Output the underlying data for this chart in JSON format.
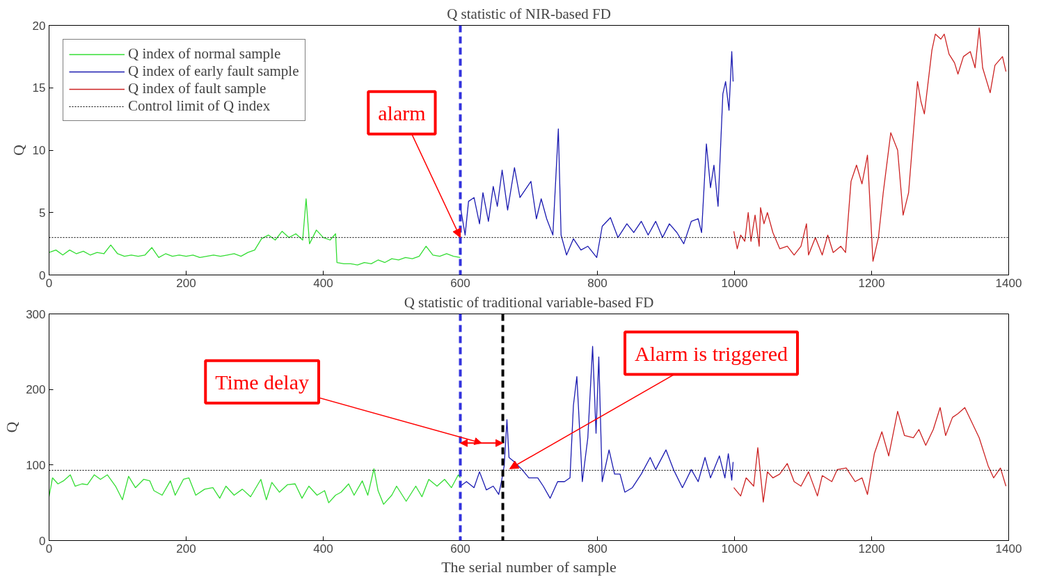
{
  "chart_data": [
    {
      "type": "line",
      "title": "Q statistic of NIR-based FD",
      "ylabel": "Q",
      "xlim": [
        0,
        1400
      ],
      "ylim": [
        0,
        20
      ],
      "xticks": [
        0,
        200,
        400,
        600,
        800,
        1000,
        1200,
        1400
      ],
      "yticks": [
        0,
        5,
        10,
        15,
        20
      ],
      "grid": false,
      "legend": "top left",
      "line_style": "solid",
      "marker": "none",
      "series": [
        {
          "name": "Q index of normal sample",
          "color": "#33dd33",
          "x": [
            0,
            10,
            20,
            30,
            40,
            50,
            60,
            70,
            80,
            90,
            100,
            110,
            120,
            130,
            140,
            150,
            160,
            170,
            180,
            190,
            200,
            210,
            220,
            230,
            240,
            250,
            260,
            270,
            280,
            290,
            300,
            310,
            320,
            330,
            340,
            350,
            360,
            370,
            375,
            380,
            390,
            400,
            410,
            418,
            420,
            430,
            440,
            450,
            460,
            470,
            480,
            490,
            500,
            510,
            520,
            530,
            540,
            550,
            560,
            570,
            580,
            590,
            600
          ],
          "values": [
            1.8,
            2.0,
            1.6,
            2.0,
            1.7,
            1.9,
            1.6,
            1.8,
            1.7,
            2.4,
            1.7,
            1.5,
            1.6,
            1.5,
            1.6,
            2.2,
            1.4,
            1.7,
            1.5,
            1.6,
            1.5,
            1.6,
            1.4,
            1.5,
            1.6,
            1.5,
            1.6,
            1.7,
            1.5,
            1.8,
            2.0,
            2.9,
            3.2,
            2.8,
            3.5,
            3.0,
            3.3,
            2.8,
            6.1,
            2.5,
            3.6,
            3.0,
            2.8,
            3.3,
            1.0,
            0.9,
            0.9,
            0.8,
            1.0,
            0.9,
            1.2,
            1.0,
            1.3,
            1.2,
            1.4,
            1.3,
            1.5,
            2.3,
            1.6,
            1.5,
            1.7,
            1.5,
            1.4
          ]
        },
        {
          "name": "Q index of early fault sample",
          "color": "#1a1ab0",
          "x": [
            600,
            607,
            612,
            620,
            628,
            633,
            641,
            648,
            654,
            661,
            669,
            679,
            687,
            703,
            711,
            718,
            726,
            735,
            743,
            747,
            755,
            765,
            776,
            786,
            799,
            807,
            819,
            830,
            843,
            853,
            864,
            874,
            885,
            895,
            905,
            916,
            926,
            937,
            947,
            952,
            959,
            965,
            970,
            976,
            983,
            987,
            992,
            996,
            998
          ],
          "values": [
            5.5,
            3.2,
            5.9,
            6.2,
            4.1,
            6.6,
            4.3,
            7.1,
            5.5,
            8.4,
            5.2,
            8.6,
            6.2,
            7.5,
            4.5,
            6.1,
            4.5,
            3.2,
            11.7,
            3.2,
            1.6,
            2.9,
            2.0,
            2.3,
            1.4,
            3.9,
            4.6,
            3.0,
            4.1,
            3.4,
            4.3,
            3.2,
            4.3,
            3.0,
            4.1,
            3.4,
            2.5,
            4.3,
            4.5,
            3.4,
            10.5,
            7.0,
            8.8,
            5.5,
            14.5,
            15.5,
            13.2,
            17.9,
            15.5
          ]
        },
        {
          "name": "Q index of fault sample",
          "color": "#cc2222",
          "x": [
            999,
            1004,
            1009,
            1015,
            1020,
            1024,
            1030,
            1036,
            1038,
            1043,
            1048,
            1056,
            1066,
            1077,
            1087,
            1097,
            1105,
            1108,
            1118,
            1128,
            1136,
            1144,
            1155,
            1162,
            1170,
            1178,
            1186,
            1194,
            1202,
            1210,
            1217,
            1228,
            1238,
            1246,
            1254,
            1267,
            1272,
            1277,
            1288,
            1293,
            1301,
            1306,
            1313,
            1321,
            1326,
            1334,
            1344,
            1351,
            1357,
            1362,
            1373,
            1380,
            1391,
            1396
          ],
          "values": [
            3.5,
            2.1,
            3.2,
            2.7,
            5.0,
            2.7,
            4.8,
            2.3,
            5.4,
            4.1,
            5.0,
            3.4,
            2.1,
            2.3,
            1.6,
            2.3,
            4.1,
            1.6,
            3.0,
            1.6,
            3.2,
            1.8,
            2.3,
            1.8,
            7.5,
            8.8,
            7.3,
            9.6,
            1.1,
            3.0,
            6.6,
            11.4,
            10.0,
            4.8,
            6.6,
            15.5,
            13.9,
            12.9,
            18.0,
            19.3,
            18.9,
            19.3,
            17.7,
            17.0,
            16.1,
            17.5,
            17.9,
            16.6,
            19.8,
            16.6,
            14.6,
            16.8,
            17.5,
            16.3
          ]
        }
      ],
      "ref_lines": [
        {
          "axis": "y",
          "value": 3,
          "label": "Control limit of Q index",
          "color": "#000000",
          "line_style": "dotted"
        },
        {
          "axis": "x",
          "value": 600,
          "color": "#3333dd",
          "line_style": "dashed"
        }
      ],
      "annotations": [
        {
          "text": "alarm",
          "x": 600,
          "y": 3
        }
      ]
    },
    {
      "type": "line",
      "title": "Q statistic of traditional variable-based FD",
      "xlabel": "The serial number of sample",
      "ylabel": "Q",
      "xlim": [
        0,
        1400
      ],
      "ylim": [
        0,
        300
      ],
      "xticks": [
        0,
        200,
        400,
        600,
        800,
        1000,
        1200,
        1400
      ],
      "yticks": [
        0,
        100,
        200,
        300
      ],
      "grid": false,
      "legend": false,
      "line_style": "solid",
      "marker": "none",
      "series": [
        {
          "color": "#33dd33",
          "x": [
            0,
            5,
            13,
            21,
            31,
            38,
            48,
            56,
            66,
            75,
            85,
            97,
            107,
            116,
            126,
            138,
            147,
            153,
            165,
            177,
            184,
            196,
            204,
            214,
            227,
            239,
            249,
            258,
            270,
            282,
            294,
            309,
            317,
            325,
            336,
            348,
            359,
            369,
            379,
            391,
            402,
            408,
            418,
            426,
            437,
            445,
            457,
            465,
            474,
            480,
            488,
            500,
            507,
            521,
            535,
            544,
            554,
            566,
            577,
            587,
            597,
            600
          ],
          "values": [
            58,
            83,
            75,
            79,
            87,
            72,
            75,
            74,
            87,
            81,
            87,
            72,
            54,
            85,
            70,
            81,
            79,
            66,
            60,
            79,
            60,
            81,
            83,
            60,
            68,
            70,
            56,
            72,
            60,
            68,
            58,
            81,
            54,
            77,
            64,
            74,
            75,
            56,
            72,
            60,
            66,
            50,
            60,
            64,
            75,
            60,
            79,
            60,
            95,
            66,
            48,
            60,
            72,
            52,
            72,
            58,
            81,
            72,
            81,
            70,
            87,
            83
          ]
        },
        {
          "color": "#1a1ab0",
          "x": [
            600,
            609,
            620,
            628,
            638,
            648,
            656,
            660,
            664,
            668,
            671,
            679,
            690,
            700,
            713,
            721,
            731,
            742,
            752,
            760,
            765,
            770,
            778,
            786,
            793,
            798,
            802,
            807,
            817,
            825,
            833,
            840,
            851,
            864,
            877,
            885,
            900,
            911,
            924,
            937,
            947,
            957,
            965,
            978,
            986,
            991,
            996,
            998
          ],
          "values": [
            72,
            78,
            70,
            91,
            67,
            72,
            61,
            78,
            99,
            160,
            110,
            104,
            94,
            83,
            83,
            72,
            56,
            78,
            78,
            83,
            179,
            217,
            78,
            136,
            257,
            142,
            243,
            78,
            120,
            88,
            88,
            64,
            70,
            88,
            110,
            94,
            120,
            94,
            70,
            94,
            78,
            110,
            83,
            112,
            83,
            115,
            80,
            104
          ]
        },
        {
          "color": "#cc2222",
          "x": [
            999,
            1009,
            1017,
            1028,
            1034,
            1042,
            1048,
            1056,
            1066,
            1077,
            1087,
            1097,
            1108,
            1121,
            1128,
            1142,
            1150,
            1163,
            1176,
            1186,
            1194,
            1204,
            1215,
            1225,
            1238,
            1248,
            1261,
            1269,
            1279,
            1290,
            1300,
            1308,
            1318,
            1326,
            1336,
            1347,
            1357,
            1370,
            1378,
            1388,
            1396
          ],
          "values": [
            70,
            59,
            83,
            72,
            123,
            51,
            91,
            83,
            88,
            102,
            78,
            72,
            91,
            59,
            86,
            78,
            94,
            96,
            78,
            83,
            61,
            115,
            144,
            112,
            171,
            139,
            136,
            147,
            126,
            147,
            176,
            139,
            163,
            168,
            176,
            155,
            136,
            99,
            83,
            96,
            72
          ]
        }
      ],
      "ref_lines": [
        {
          "axis": "y",
          "value": 93,
          "color": "#000000",
          "line_style": "dotted"
        },
        {
          "axis": "x",
          "value": 600,
          "color": "#3333dd",
          "line_style": "dashed"
        },
        {
          "axis": "x",
          "value": 662,
          "color": "#000000",
          "line_style": "dashed"
        }
      ],
      "annotations": [
        "Time delay",
        {
          "text": "Alarm is triggered",
          "x": 672,
          "y": 95
        }
      ]
    }
  ]
}
